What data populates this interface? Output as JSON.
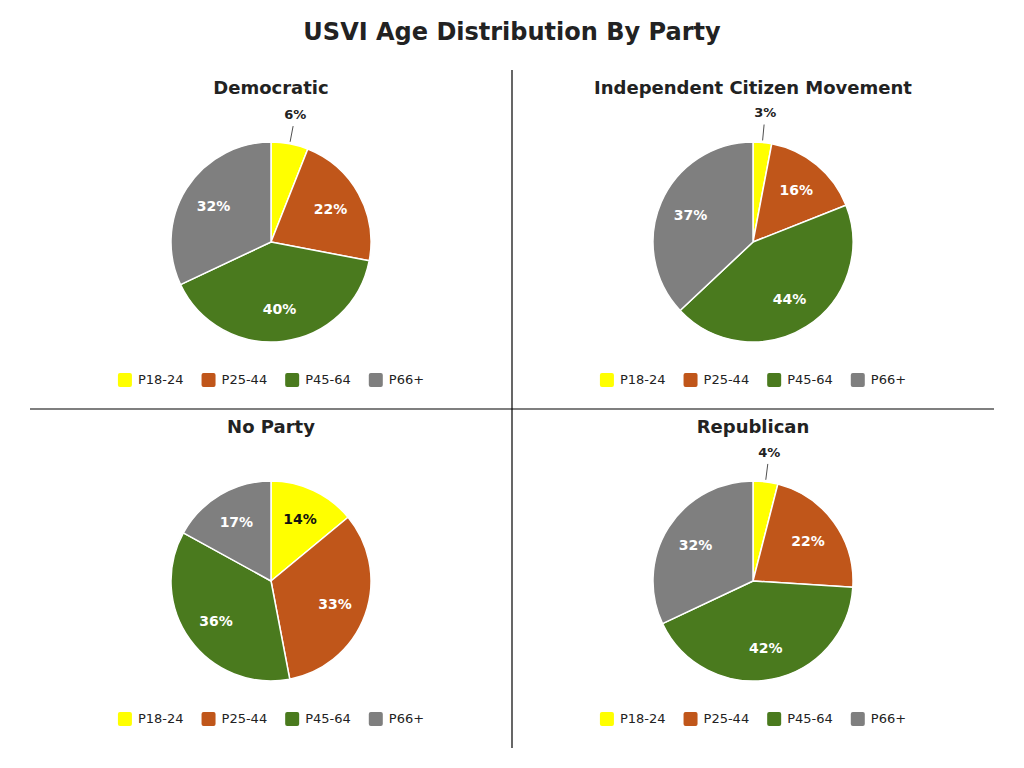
{
  "title": "USVI Age Distribution By Party",
  "chart_data": [
    {
      "type": "pie",
      "title": "Democratic",
      "categories": [
        "P18-24",
        "P25-44",
        "P45-64",
        "P66+"
      ],
      "values": [
        6,
        22,
        40,
        32
      ],
      "value_labels": [
        "6%",
        "22%",
        "40%",
        "32%"
      ],
      "colors": [
        "#FFFF00",
        "#C0561A",
        "#4A7A1E",
        "#7F7F7F"
      ],
      "data_labels": true,
      "legend": "bottom"
    },
    {
      "type": "pie",
      "title": "Independent Citizen Movement",
      "categories": [
        "P18-24",
        "P25-44",
        "P45-64",
        "P66+"
      ],
      "values": [
        3,
        16,
        44,
        37
      ],
      "value_labels": [
        "3%",
        "16%",
        "44%",
        "37%"
      ],
      "colors": [
        "#FFFF00",
        "#C0561A",
        "#4A7A1E",
        "#7F7F7F"
      ],
      "data_labels": true,
      "legend": "bottom"
    },
    {
      "type": "pie",
      "title": "No Party",
      "categories": [
        "P18-24",
        "P25-44",
        "P45-64",
        "P66+"
      ],
      "values": [
        14,
        33,
        36,
        17
      ],
      "value_labels": [
        "14%",
        "33%",
        "36%",
        "17%"
      ],
      "colors": [
        "#FFFF00",
        "#C0561A",
        "#4A7A1E",
        "#7F7F7F"
      ],
      "data_labels": true,
      "legend": "bottom"
    },
    {
      "type": "pie",
      "title": "Republican",
      "categories": [
        "P18-24",
        "P25-44",
        "P45-64",
        "P66+"
      ],
      "values": [
        4,
        22,
        42,
        32
      ],
      "value_labels": [
        "4%",
        "22%",
        "42%",
        "32%"
      ],
      "colors": [
        "#FFFF00",
        "#C0561A",
        "#4A7A1E",
        "#7F7F7F"
      ],
      "data_labels": true,
      "legend": "bottom"
    }
  ]
}
